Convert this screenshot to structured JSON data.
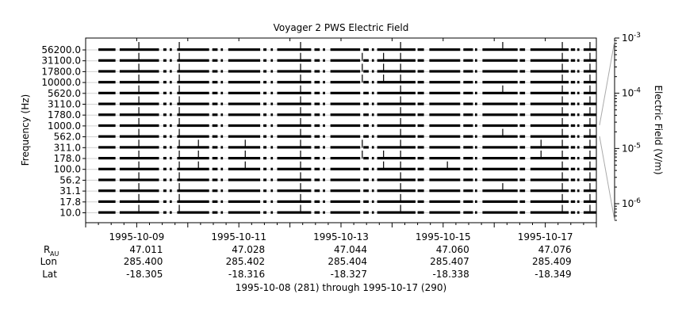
{
  "chart_data": {
    "type": "heatmap",
    "title": "Voyager 2 PWS Electric Field",
    "ylabel": "Frequency (Hz)",
    "colorbar_label": "Electric Field (V/m)",
    "colorbar_scale": "log",
    "colorbar_range": [
      5e-07,
      0.001
    ],
    "colorbar_ticks": [
      {
        "value": 0.001,
        "mantissa": "10",
        "exp": "-3"
      },
      {
        "value": 0.0001,
        "mantissa": "10",
        "exp": "-4"
      },
      {
        "value": 1e-05,
        "mantissa": "10",
        "exp": "-5"
      },
      {
        "value": 1e-06,
        "mantissa": "10",
        "exp": "-6"
      }
    ],
    "channels": [
      "56200.0",
      "31100.0",
      "17800.0",
      "10000.0",
      "5620.0",
      "3110.0",
      "1780.0",
      "1000.0",
      "562.0",
      "311.0",
      "178.0",
      "100.0",
      "56.2",
      "31.1",
      "17.8",
      "10.0"
    ],
    "x_range": [
      "1995-10-08",
      "1995-10-18"
    ],
    "x_ticks": [
      {
        "date": "1995-10-09",
        "label": "1995-10-09",
        "R_AU": "47.011",
        "Lon": "285.400",
        "Lat": "-18.305"
      },
      {
        "date": "1995-10-11",
        "label": "1995-10-11",
        "R_AU": "47.028",
        "Lon": "285.402",
        "Lat": "-18.316"
      },
      {
        "date": "1995-10-13",
        "label": "1995-10-13",
        "R_AU": "47.044",
        "Lon": "285.404",
        "Lat": "-18.327"
      },
      {
        "date": "1995-10-15",
        "label": "1995-10-15",
        "R_AU": "47.060",
        "Lon": "285.407",
        "Lat": "-18.338"
      },
      {
        "date": "1995-10-17",
        "label": "1995-10-17",
        "R_AU": "47.076",
        "Lon": "285.409",
        "Lat": "-18.349"
      }
    ],
    "ephemeris_labels": {
      "r_main": "R",
      "r_sub": "AU",
      "lon": "Lon",
      "lat": "Lat"
    },
    "data_segments": [
      [
        "1995-10-08T06:00",
        "1995-10-08T14:00"
      ],
      [
        "1995-10-08T16:00",
        "1995-10-09T10:30"
      ],
      [
        "1995-10-09T12:30",
        "1995-10-09T14:00"
      ],
      [
        "1995-10-09T15:30",
        "1995-10-09T16:30"
      ],
      [
        "1995-10-09T19:00",
        "1995-10-10T10:00"
      ],
      [
        "1995-10-10T11:30",
        "1995-10-10T14:00"
      ],
      [
        "1995-10-10T15:30",
        "1995-10-10T16:30"
      ],
      [
        "1995-10-10T19:00",
        "1995-10-11T10:00"
      ],
      [
        "1995-10-11T11:30",
        "1995-10-11T13:00"
      ],
      [
        "1995-10-11T15:00",
        "1995-10-11T16:00"
      ],
      [
        "1995-10-11T18:00",
        "1995-10-12T10:00"
      ],
      [
        "1995-10-12T11:30",
        "1995-10-12T14:00"
      ],
      [
        "1995-10-12T15:30",
        "1995-10-12T16:30"
      ],
      [
        "1995-10-12T19:00",
        "1995-10-13T09:00"
      ],
      [
        "1995-10-13T10:30",
        "1995-10-13T13:00"
      ],
      [
        "1995-10-13T14:30",
        "1995-10-13T15:30"
      ],
      [
        "1995-10-13T17:00",
        "1995-10-14T11:00"
      ],
      [
        "1995-10-14T12:00",
        "1995-10-14T15:00"
      ],
      [
        "1995-10-14T17:30",
        "1995-10-15T08:00"
      ],
      [
        "1995-10-15T09:30",
        "1995-10-15T14:00"
      ],
      [
        "1995-10-15T15:00",
        "1995-10-15T16:00"
      ],
      [
        "1995-10-15T18:30",
        "1995-10-16T11:00"
      ],
      [
        "1995-10-16T12:00",
        "1995-10-16T14:30"
      ],
      [
        "1995-10-16T17:00",
        "1995-10-17T11:00"
      ],
      [
        "1995-10-17T12:00",
        "1995-10-17T14:00"
      ],
      [
        "1995-10-17T15:00",
        "1995-10-17T16:00"
      ],
      [
        "1995-10-17T18:00",
        "1995-10-18T00:00"
      ]
    ],
    "spikes": [
      {
        "t": "1995-10-09T01:00",
        "channels": [
          0,
          1,
          2,
          3,
          4,
          5,
          6,
          7,
          8,
          9,
          10,
          11,
          12,
          13,
          14,
          15
        ]
      },
      {
        "t": "1995-10-09T20:00",
        "channels": [
          0,
          1,
          2,
          3,
          4,
          5,
          6,
          7,
          8,
          9,
          10,
          11,
          12,
          13,
          14,
          15
        ]
      },
      {
        "t": "1995-10-10T05:00",
        "channels": [
          9,
          10,
          11
        ]
      },
      {
        "t": "1995-10-11T03:00",
        "channels": [
          9,
          10,
          11
        ]
      },
      {
        "t": "1995-10-12T05:00",
        "channels": [
          0,
          1,
          2,
          3,
          4,
          5,
          6,
          7,
          8,
          9,
          10,
          11,
          12,
          13,
          14,
          15
        ]
      },
      {
        "t": "1995-10-13T10:00",
        "channels": [
          1,
          2,
          3,
          9,
          10
        ]
      },
      {
        "t": "1995-10-14T04:00",
        "channels": [
          0,
          1,
          2,
          3,
          4,
          5,
          6,
          7,
          8,
          9,
          10,
          11,
          12,
          13,
          14,
          15
        ]
      },
      {
        "t": "1995-10-13T20:00",
        "channels": [
          1,
          2,
          3,
          10,
          11
        ]
      },
      {
        "t": "1995-10-15T02:00",
        "channels": [
          11
        ]
      },
      {
        "t": "1995-10-16T04:00",
        "channels": [
          0,
          4,
          8,
          13
        ]
      },
      {
        "t": "1995-10-16T22:00",
        "channels": [
          9,
          10
        ]
      },
      {
        "t": "1995-10-17T08:00",
        "channels": [
          0,
          1,
          2,
          3,
          4,
          5,
          6,
          7,
          8,
          9,
          10,
          11,
          12,
          13,
          14,
          15
        ]
      },
      {
        "t": "1995-10-17T21:00",
        "channels": [
          0,
          1,
          2,
          3,
          4,
          5,
          6,
          7,
          8,
          9,
          10,
          11,
          12,
          13,
          14,
          15
        ]
      }
    ],
    "footer": "1995-10-08 (281) through 1995-10-17 (290)"
  }
}
